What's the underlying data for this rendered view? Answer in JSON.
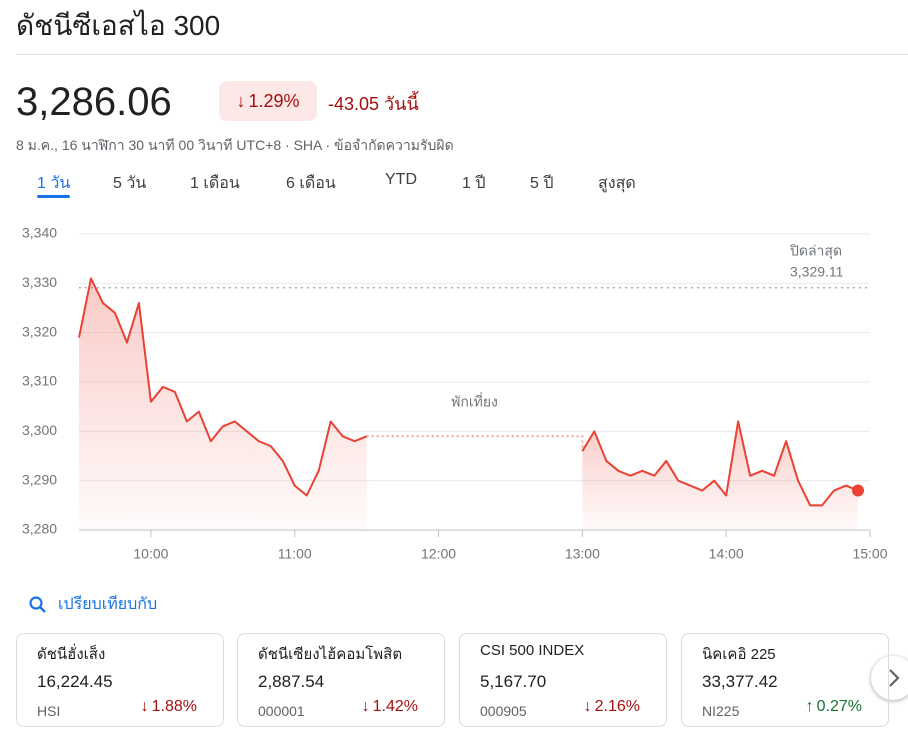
{
  "header": {
    "title": "ดัชนีซีเอสไอ 300",
    "price": "3,286.06",
    "change_percent": "1.29%",
    "change": "-43.05 วันนี้",
    "timestamp": "8 ม.ค., 16 นาฬิกา 30 นาที 00 วินาที UTC+8 · SHA · ข้อจำกัดความรับผิด"
  },
  "tabs": [
    "1 วัน",
    "5 วัน",
    "1 เดือน",
    "6 เดือน",
    "YTD",
    "1 ปี",
    "5 ปี",
    "สูงสุด"
  ],
  "chart_data": {
    "type": "line",
    "color": "#e94235",
    "x": [
      570,
      575,
      580,
      585,
      590,
      595,
      600,
      605,
      610,
      615,
      620,
      625,
      630,
      635,
      640,
      645,
      650,
      655,
      660,
      665,
      670,
      675,
      680,
      685,
      690,
      750,
      780,
      785,
      790,
      795,
      800,
      805,
      810,
      815,
      820,
      825,
      830,
      835,
      840,
      845,
      850,
      855,
      860,
      865,
      870,
      875,
      880,
      885,
      890,
      895
    ],
    "values": [
      3319,
      3331,
      3326,
      3324,
      3318,
      3326,
      3306,
      3309,
      3308,
      3302,
      3304,
      3298,
      3301,
      3302,
      3300,
      3298,
      3297,
      3294,
      3289,
      3287,
      3292,
      3302,
      3299,
      3298,
      3299,
      null,
      3296,
      3300,
      3294,
      3292,
      3291,
      3292,
      3291,
      3294,
      3290,
      3289,
      3288,
      3290,
      3287,
      3302,
      3291,
      3292,
      3291,
      3298,
      3290,
      3285,
      3285,
      3288,
      3289,
      3288
    ],
    "xlim": [
      570,
      900
    ],
    "ylim": [
      3280,
      3340
    ],
    "xticks": [
      {
        "value": 600,
        "label": "10:00"
      },
      {
        "value": 660,
        "label": "11:00"
      },
      {
        "value": 720,
        "label": "12:00"
      },
      {
        "value": 780,
        "label": "13:00"
      },
      {
        "value": 840,
        "label": "14:00"
      },
      {
        "value": 900,
        "label": "15:00"
      }
    ],
    "yticks": [
      {
        "value": 3280,
        "label": "3,280"
      },
      {
        "value": 3290,
        "label": "3,290"
      },
      {
        "value": 3300,
        "label": "3,300"
      },
      {
        "value": 3310,
        "label": "3,310"
      },
      {
        "value": 3320,
        "label": "3,320"
      },
      {
        "value": 3330,
        "label": "3,330"
      },
      {
        "value": 3340,
        "label": "3,340"
      }
    ],
    "grid": true,
    "previous_close": {
      "label": "ปิดล่าสุด",
      "value": 3329.11,
      "value_label": "3,329.11"
    },
    "annotation": "พักเที่ยง"
  },
  "compare": {
    "title": "เปรียบเทียบกับ",
    "cards": [
      {
        "name": "ดัชนีฮั่งเส็ง",
        "price": "16,224.45",
        "code": "HSI",
        "change": "1.88%",
        "color": "#a50e0e"
      },
      {
        "name": "ดัชนีเซียงไฮ้คอมโพสิต",
        "price": "2,887.54",
        "code": "000001",
        "change": "1.42%",
        "color": "#a50e0e"
      },
      {
        "name": "CSI 500 INDEX",
        "price": "5,167.70",
        "code": "000905",
        "change": "2.16%",
        "color": "#a50e0e"
      },
      {
        "name": "นิคเคอิ 225",
        "price": "33,377.42",
        "code": "NI225",
        "change": "0.27%",
        "color": "#137333"
      }
    ]
  }
}
